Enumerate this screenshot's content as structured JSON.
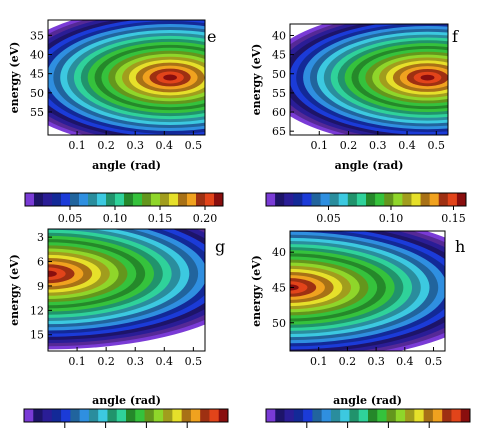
{
  "figure": {
    "colormap": [
      "#ffffff",
      "#7a3bd6",
      "#2a1d96",
      "#1b3bd8",
      "#2f8fe0",
      "#3cc9e0",
      "#2fd29a",
      "#35c23c",
      "#8fd62a",
      "#e6e02a",
      "#f0a21f",
      "#e2441a",
      "#c41414"
    ]
  },
  "chart_data": [
    {
      "panel": "e",
      "type": "heatmap",
      "title": "",
      "xlabel": "angle  (rad)",
      "ylabel": "energy  (eV)",
      "x_ticks": [
        "0.1",
        "0.2",
        "0.3",
        "0.4",
        "0.5"
      ],
      "y_ticks": [
        "35",
        "40",
        "45",
        "50",
        "55"
      ],
      "x_range": [
        0.0,
        0.54
      ],
      "y_range": [
        31,
        61
      ],
      "y_inverted": true,
      "peak": {
        "angle": 0.42,
        "energy": 46
      },
      "colorbar": {
        "ticks": [
          "0.05",
          "0.10",
          "0.15",
          "0.20"
        ],
        "range": [
          0.0,
          0.22
        ]
      }
    },
    {
      "panel": "f",
      "type": "heatmap",
      "title": "",
      "xlabel": "angle  (rad)",
      "ylabel": "energy  (eV)",
      "x_ticks": [
        "0.1",
        "0.2",
        "0.3",
        "0.4",
        "0.5"
      ],
      "y_ticks": [
        "40",
        "45",
        "50",
        "55",
        "60",
        "65"
      ],
      "x_range": [
        0.0,
        0.54
      ],
      "y_range": [
        37,
        66
      ],
      "y_inverted": true,
      "peak": {
        "angle": 0.47,
        "energy": 51
      },
      "colorbar": {
        "ticks": [
          "0.05",
          "0.10",
          "0.15"
        ],
        "range": [
          0.0,
          0.16
        ]
      }
    },
    {
      "panel": "g",
      "type": "heatmap",
      "title": "",
      "xlabel": "angle  (rad)",
      "ylabel": "energy  (eV)",
      "x_ticks": [
        "0.1",
        "0.2",
        "0.3",
        "0.4",
        "0.5"
      ],
      "y_ticks": [
        "3",
        "6",
        "9",
        "12",
        "15"
      ],
      "x_range": [
        0.0,
        0.54
      ],
      "y_range": [
        2,
        17
      ],
      "y_inverted": true,
      "peak": {
        "angle": 0.0,
        "energy": 7.5
      },
      "colorbar": {
        "ticks": [],
        "range": [
          0.0,
          1.0
        ]
      }
    },
    {
      "panel": "h",
      "type": "heatmap",
      "title": "",
      "xlabel": "angle  (rad)",
      "ylabel": "energy  (eV)",
      "x_ticks": [
        "0.1",
        "0.2",
        "0.3",
        "0.4",
        "0.5"
      ],
      "y_ticks": [
        "40",
        "45",
        "50"
      ],
      "x_range": [
        0.0,
        0.54
      ],
      "y_range": [
        37,
        54
      ],
      "y_inverted": true,
      "peak": {
        "angle": 0.0,
        "energy": 45
      },
      "colorbar": {
        "ticks": [],
        "range": [
          0.0,
          1.0
        ]
      }
    }
  ]
}
